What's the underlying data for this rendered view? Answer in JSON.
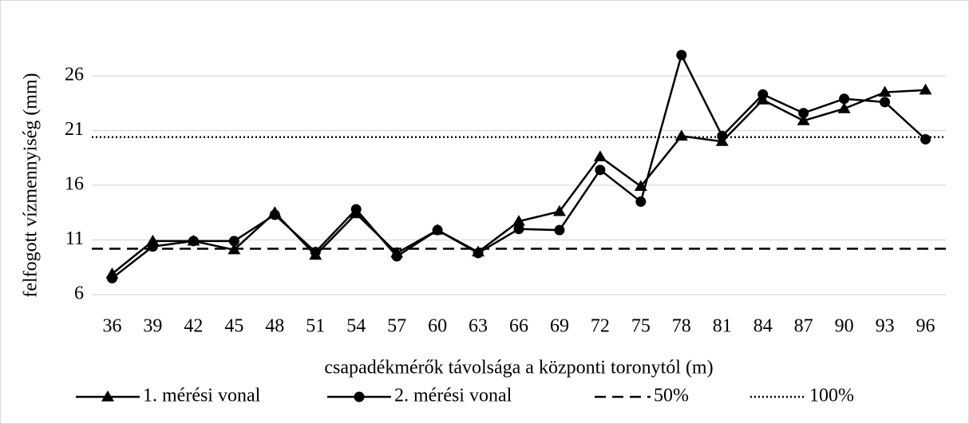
{
  "chart_data": {
    "type": "line",
    "x_label": "csapadékmérők távolsága a központi toronytól (m)",
    "y_label": "felfogott vízmennyiség (mm)",
    "categories": [
      "36",
      "39",
      "42",
      "45",
      "48",
      "51",
      "54",
      "57",
      "60",
      "63",
      "66",
      "69",
      "72",
      "75",
      "78",
      "81",
      "84",
      "87",
      "90",
      "93",
      "96"
    ],
    "series": [
      {
        "name": "1. mérési vonal",
        "color": "#000000",
        "marker": "triangle",
        "values": [
          7.9,
          10.9,
          10.9,
          10.1,
          13.5,
          9.6,
          13.4,
          9.8,
          11.9,
          9.9,
          12.7,
          13.6,
          18.6,
          15.9,
          20.5,
          20.0,
          23.8,
          21.9,
          23.0,
          24.5,
          24.7
        ]
      },
      {
        "name": "2. mérési vonal",
        "color": "#000000",
        "marker": "circle",
        "values": [
          7.5,
          10.4,
          10.9,
          10.9,
          13.3,
          9.9,
          13.8,
          9.5,
          11.9,
          9.8,
          12.0,
          11.9,
          17.4,
          14.5,
          27.9,
          20.5,
          24.3,
          22.6,
          23.9,
          23.6,
          20.2
        ]
      }
    ],
    "reference_lines": [
      {
        "name": "50%",
        "value": 10.2,
        "color": "#000000",
        "dash": "dashed"
      },
      {
        "name": "100%",
        "value": 20.4,
        "color": "#000000",
        "dash": "dotted"
      }
    ],
    "ylim": [
      6,
      29.5
    ],
    "yticks": [
      6,
      11,
      16,
      21,
      26
    ],
    "grid": true,
    "legend": "bottom"
  }
}
